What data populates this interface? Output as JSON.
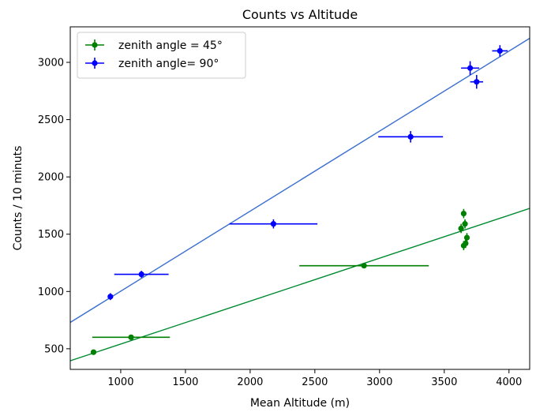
{
  "chart_data": {
    "type": "scatter",
    "title": "Counts vs Altitude",
    "xlabel": "Mean Altitude (m)",
    "ylabel": "Counts / 10 minuts",
    "xlim": [
      610,
      4160
    ],
    "ylim": [
      320,
      3310
    ],
    "xticks": [
      1000,
      1500,
      2000,
      2500,
      3000,
      3500,
      4000
    ],
    "yticks": [
      500,
      1000,
      1500,
      2000,
      2500,
      3000
    ],
    "grid": false,
    "legend_position": "top-left",
    "series": [
      {
        "name": "zenith angle = 45°",
        "color": "#008000",
        "fit_color": "#008a30",
        "points": [
          {
            "x": 790,
            "y": 470,
            "xerr": 0,
            "yerr": 0
          },
          {
            "x": 1080,
            "y": 600,
            "xerr": 300,
            "yerr": 0
          },
          {
            "x": 2880,
            "y": 1225,
            "xerr": 500,
            "yerr": 0
          },
          {
            "x": 3630,
            "y": 1550,
            "xerr": 0,
            "yerr": 40
          },
          {
            "x": 3650,
            "y": 1680,
            "xerr": 0,
            "yerr": 40
          },
          {
            "x": 3660,
            "y": 1590,
            "xerr": 0,
            "yerr": 40
          },
          {
            "x": 3665,
            "y": 1420,
            "xerr": 0,
            "yerr": 40
          },
          {
            "x": 3675,
            "y": 1470,
            "xerr": 0,
            "yerr": 40
          },
          {
            "x": 3650,
            "y": 1400,
            "xerr": 0,
            "yerr": 40
          }
        ],
        "fit": {
          "x": [
            610,
            4160
          ],
          "y": [
            395,
            1725
          ]
        }
      },
      {
        "name": "zenith angle= 90°",
        "color": "#0000ff",
        "fit_color": "#3a6fd0",
        "points": [
          {
            "x": 920,
            "y": 955,
            "xerr": 0,
            "yerr": 30
          },
          {
            "x": 1160,
            "y": 1150,
            "xerr": 210,
            "yerr": 30
          },
          {
            "x": 2180,
            "y": 1590,
            "xerr": 340,
            "yerr": 40
          },
          {
            "x": 3240,
            "y": 2350,
            "xerr": 250,
            "yerr": 50
          },
          {
            "x": 3700,
            "y": 2950,
            "xerr": 70,
            "yerr": 60
          },
          {
            "x": 3750,
            "y": 2830,
            "xerr": 50,
            "yerr": 60
          },
          {
            "x": 3930,
            "y": 3100,
            "xerr": 60,
            "yerr": 50
          }
        ],
        "fit": {
          "x": [
            610,
            4160
          ],
          "y": [
            730,
            3210
          ]
        }
      }
    ]
  }
}
